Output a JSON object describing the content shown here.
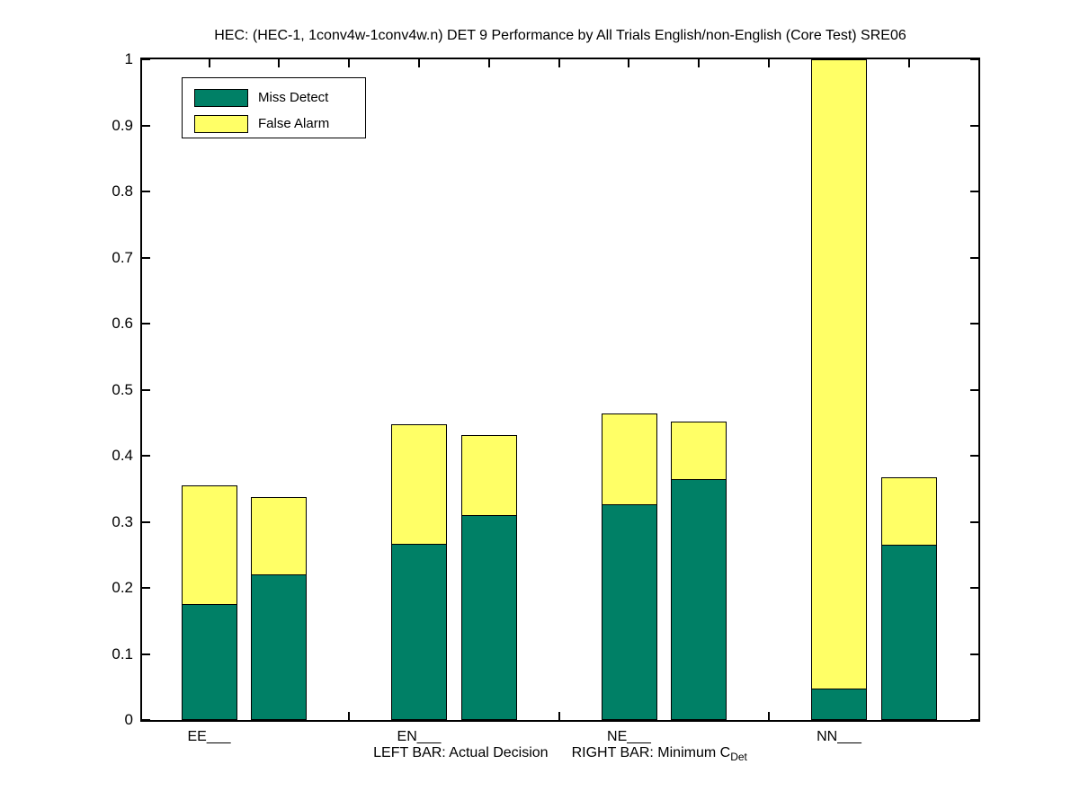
{
  "title": "HEC: (HEC-1, 1conv4w-1conv4w.n) DET 9 Performance by All Trials English/non-English (Core Test) SRE06",
  "legend": {
    "items": [
      {
        "label": "Miss Detect",
        "color": "#008066"
      },
      {
        "label": "False Alarm",
        "color": "#FFFF66"
      }
    ]
  },
  "xlabel": {
    "left_text": "LEFT BAR: Actual Decision",
    "right_text": "RIGHT BAR: Minimum C",
    "subscript": "Det"
  },
  "chart_data": {
    "type": "bar",
    "subtype": "grouped-stacked-vertical",
    "title": "HEC: (HEC-1, 1conv4w-1conv4w.n) DET 9 Performance by All Trials English/non-English (Core Test) SRE06",
    "categories": [
      "EE___",
      "EN___",
      "NE___",
      "NN___"
    ],
    "stack_order": [
      "Miss Detect",
      "False Alarm"
    ],
    "colors": {
      "miss_detect": "#008066",
      "false_alarm": "#FFFF66"
    },
    "series": [
      {
        "name": "Actual Decision",
        "position": "left",
        "miss_detect": [
          0.175,
          0.267,
          0.327,
          0.048
        ],
        "false_alarm": [
          0.18,
          0.181,
          0.137,
          0.952
        ],
        "clipped_at_top": [
          false,
          false,
          false,
          true
        ]
      },
      {
        "name": "Minimum C_Det",
        "position": "right",
        "miss_detect": [
          0.22,
          0.31,
          0.365,
          0.265
        ],
        "false_alarm": [
          0.118,
          0.121,
          0.087,
          0.102
        ],
        "clipped_at_top": [
          false,
          false,
          false,
          false
        ]
      }
    ],
    "ylim": [
      0,
      1
    ],
    "ytick_labels": [
      "0",
      "0.1",
      "0.2",
      "0.3",
      "0.4",
      "0.5",
      "0.6",
      "0.7",
      "0.8",
      "0.9",
      "1"
    ],
    "yticks": [
      0,
      0.1,
      0.2,
      0.3,
      0.4,
      0.5,
      0.6,
      0.7,
      0.8,
      0.9,
      1
    ],
    "grid": false,
    "legend_position": "upper-left-inside",
    "axis_color": "#000000",
    "background": "#ffffff"
  }
}
